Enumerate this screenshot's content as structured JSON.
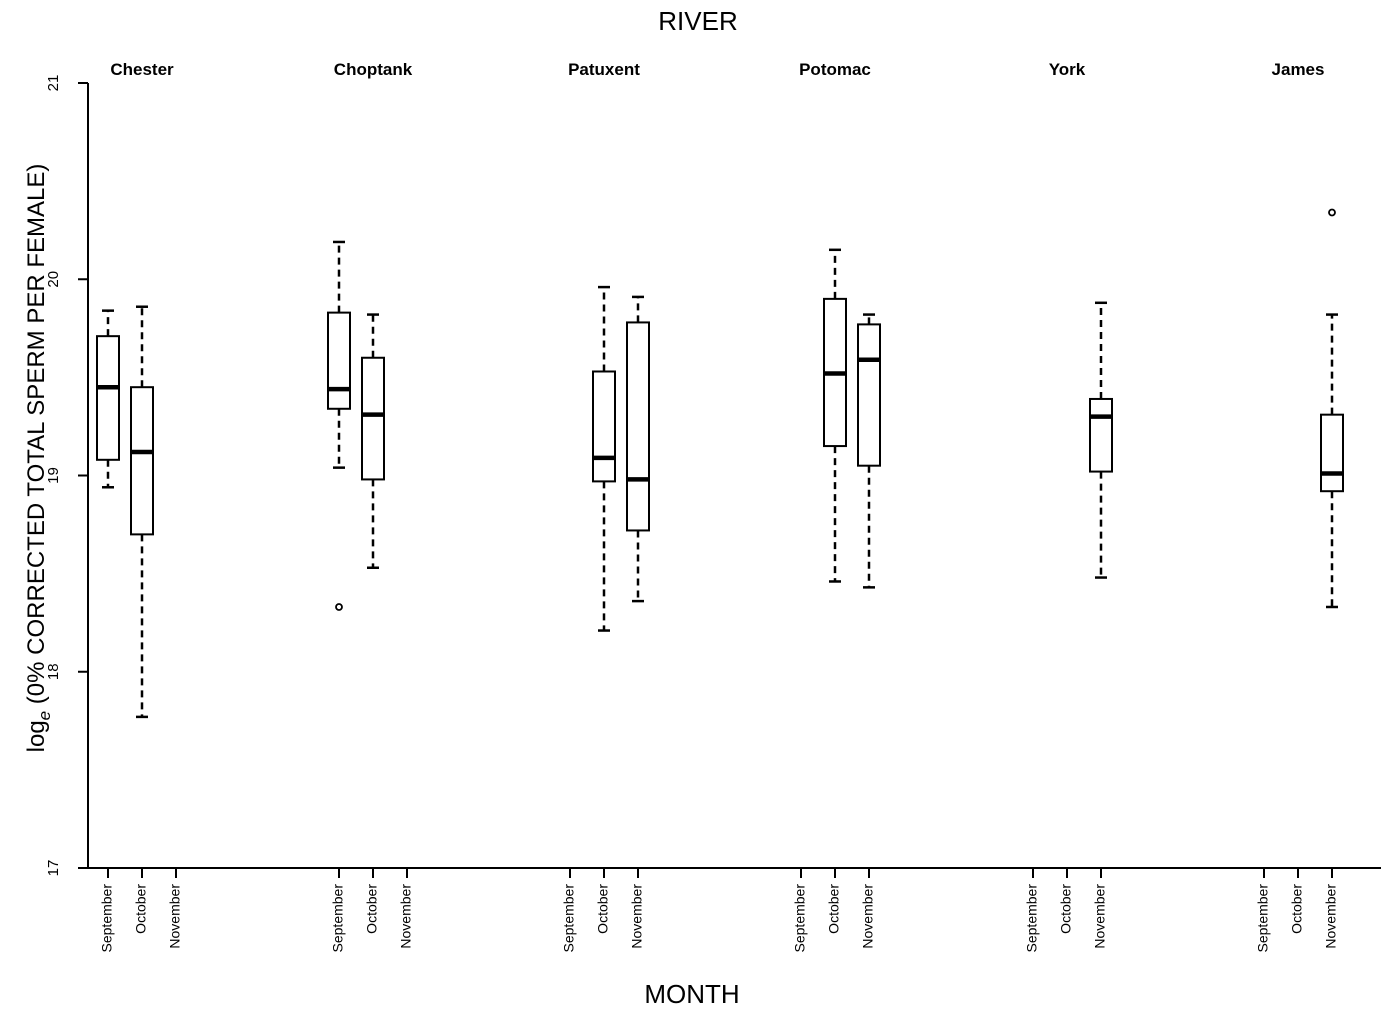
{
  "chart_data": {
    "type": "boxplot",
    "title": "RIVER",
    "xlabel": "MONTH",
    "ylabel_prefix": "log",
    "ylabel_subscript": "e",
    "ylabel_rest": " (0% CORRECTED TOTAL SPERM PER FEMALE)",
    "ylim": [
      17,
      21
    ],
    "yticks": [
      "17",
      "18",
      "19",
      "20",
      "21"
    ],
    "months": [
      "September",
      "October",
      "November"
    ],
    "rivers": [
      {
        "name": "Chester",
        "boxes": [
          {
            "month": "September",
            "whisker_low": 18.94,
            "q1": 19.08,
            "median": 19.45,
            "q3": 19.71,
            "whisker_high": 19.84,
            "outliers": []
          },
          {
            "month": "October",
            "whisker_low": 17.77,
            "q1": 18.7,
            "median": 19.12,
            "q3": 19.45,
            "whisker_high": 19.86,
            "outliers": []
          }
        ]
      },
      {
        "name": "Choptank",
        "boxes": [
          {
            "month": "September",
            "whisker_low": 19.04,
            "q1": 19.34,
            "median": 19.44,
            "q3": 19.83,
            "whisker_high": 20.19,
            "outliers": [
              18.33
            ]
          },
          {
            "month": "October",
            "whisker_low": 18.53,
            "q1": 18.98,
            "median": 19.31,
            "q3": 19.6,
            "whisker_high": 19.82,
            "outliers": []
          }
        ]
      },
      {
        "name": "Patuxent",
        "boxes": [
          {
            "month": "October",
            "whisker_low": 18.21,
            "q1": 18.97,
            "median": 19.09,
            "q3": 19.53,
            "whisker_high": 19.96,
            "outliers": []
          },
          {
            "month": "November",
            "whisker_low": 18.36,
            "q1": 18.72,
            "median": 18.98,
            "q3": 19.78,
            "whisker_high": 19.91,
            "outliers": []
          }
        ]
      },
      {
        "name": "Potomac",
        "boxes": [
          {
            "month": "October",
            "whisker_low": 18.46,
            "q1": 19.15,
            "median": 19.52,
            "q3": 19.9,
            "whisker_high": 20.15,
            "outliers": []
          },
          {
            "month": "November",
            "whisker_low": 18.43,
            "q1": 19.05,
            "median": 19.59,
            "q3": 19.77,
            "whisker_high": 19.82,
            "outliers": []
          }
        ]
      },
      {
        "name": "York",
        "boxes": [
          {
            "month": "November",
            "whisker_low": 18.48,
            "q1": 19.02,
            "median": 19.3,
            "q3": 19.39,
            "whisker_high": 19.88,
            "outliers": []
          }
        ]
      },
      {
        "name": "James",
        "boxes": [
          {
            "month": "November",
            "whisker_low": 18.33,
            "q1": 18.92,
            "median": 19.01,
            "q3": 19.31,
            "whisker_high": 19.82,
            "outliers": [
              20.34
            ]
          }
        ]
      }
    ]
  }
}
